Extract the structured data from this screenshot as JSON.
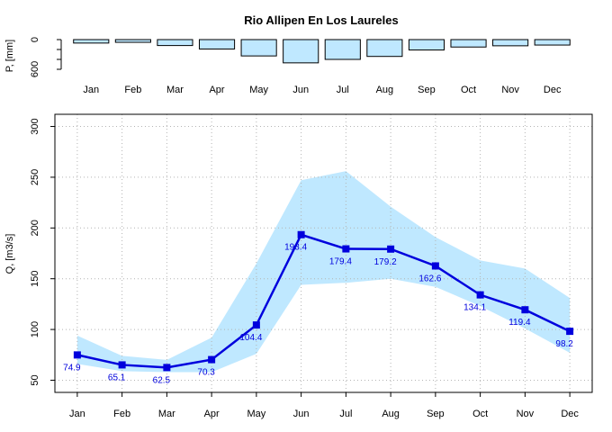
{
  "chart_data": [
    {
      "type": "bar",
      "title": "Rio Allipen En Los Laureles",
      "ylabel": "P, [mm]",
      "categories": [
        "Jan",
        "Feb",
        "Mar",
        "Apr",
        "May",
        "Jun",
        "Jul",
        "Aug",
        "Sep",
        "Oct",
        "Nov",
        "Dec"
      ],
      "values": [
        70,
        55,
        120,
        190,
        330,
        470,
        400,
        340,
        210,
        150,
        125,
        110
      ],
      "ylim": [
        600,
        0
      ],
      "yticks": [
        "0",
        "600"
      ],
      "reversed_axis": true,
      "bar_color": "#bfe8ff"
    },
    {
      "type": "line",
      "xlabel": "",
      "ylabel": "Q, [m3/s]",
      "categories": [
        "Jan",
        "Feb",
        "Mar",
        "Apr",
        "May",
        "Jun",
        "Jul",
        "Aug",
        "Sep",
        "Oct",
        "Nov",
        "Dec"
      ],
      "series": [
        {
          "values": [
            74.9,
            65.1,
            62.5,
            70.3,
            104.4,
            193.4,
            179.4,
            179.2,
            162.6,
            134.1,
            119.4,
            98.2
          ],
          "labels": [
            "74.9",
            "65.1",
            "62.5",
            "70.3",
            "104.4",
            "193.4",
            "179.4",
            "179.2",
            "162.6",
            "134.1",
            "119.4",
            "98.2"
          ],
          "color": "#0000dd"
        }
      ],
      "band": {
        "upper": [
          94,
          74,
          70,
          92,
          165,
          247,
          256,
          221,
          191,
          168,
          160,
          131
        ],
        "lower": [
          66,
          59,
          58,
          58,
          76,
          144,
          146,
          150,
          142,
          123,
          101,
          77
        ],
        "color": "#bfe8ff"
      },
      "ylim": [
        38,
        312
      ],
      "yticks": [
        50,
        100,
        150,
        200,
        250,
        300
      ],
      "grid": true
    }
  ]
}
